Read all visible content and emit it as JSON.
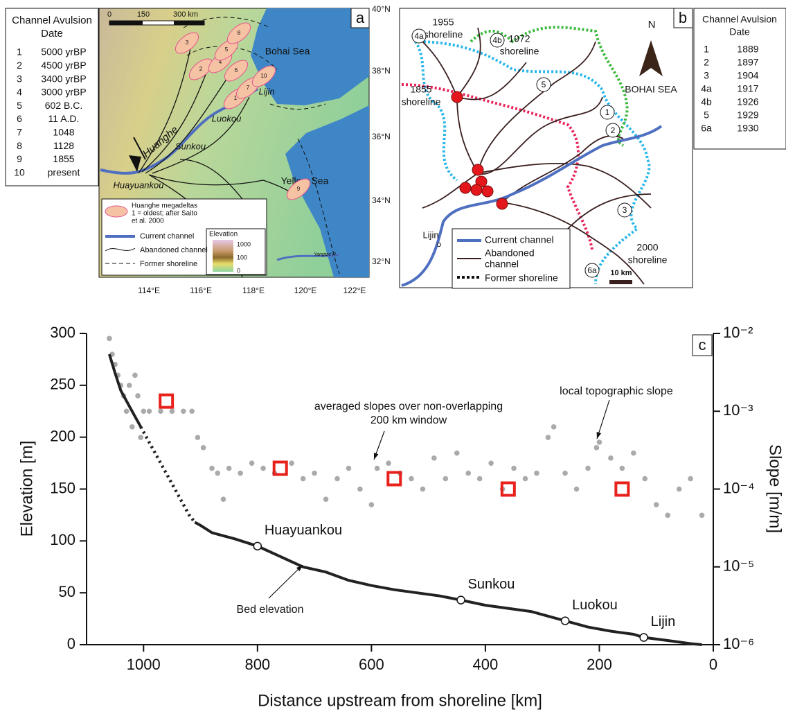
{
  "panel_a": {
    "label": "a",
    "table": {
      "header": [
        "Channel Avulsion",
        "Date"
      ],
      "rows": [
        [
          "1",
          "5000 yrBP"
        ],
        [
          "2",
          "4500 yrBP"
        ],
        [
          "3",
          "3400 yrBP"
        ],
        [
          "4",
          "3000 yrBP"
        ],
        [
          "5",
          "602 B.C."
        ],
        [
          "6",
          "11 A.D."
        ],
        [
          "7",
          "1048"
        ],
        [
          "8",
          "1128"
        ],
        [
          "9",
          "1855"
        ],
        [
          "10",
          "present"
        ]
      ]
    },
    "scale_labels": [
      "0",
      "150",
      "300 km"
    ],
    "lat_labels": [
      "40°N",
      "38°N",
      "36°N",
      "34°N",
      "32°N"
    ],
    "lon_labels": [
      "114°E",
      "116°E",
      "118°E",
      "120°E",
      "122°E"
    ],
    "places": [
      "Bohai Sea",
      "Lijin",
      "Luokou",
      "Sunkou",
      "Huayuankou",
      "Yellow Sea"
    ],
    "river": "Huanghe",
    "small_river": "Yangtze R.",
    "deltas": [
      "1",
      "2",
      "3",
      "4",
      "5",
      "6",
      "7",
      "8",
      "9",
      "10"
    ],
    "legend": {
      "deltas": [
        "Huanghe megadeltas",
        "1 = oldest; after Saito",
        "et al. 2000"
      ],
      "current": "Current channel",
      "abandoned": "Abandoned channel",
      "shoreline": "Former shoreline"
    },
    "elevation": {
      "title": "Elevation",
      "ticks": [
        "1000",
        "100",
        "0"
      ]
    }
  },
  "panel_b": {
    "label": "b",
    "table": {
      "header": [
        "Channel Avulsion",
        "Date"
      ],
      "rows": [
        [
          "1",
          "1889"
        ],
        [
          "2",
          "1897"
        ],
        [
          "3",
          "1904"
        ],
        [
          "4a",
          "1917"
        ],
        [
          "4b",
          "1926"
        ],
        [
          "5",
          "1929"
        ],
        [
          "6a",
          "1930"
        ]
      ]
    },
    "shorelines": [
      [
        "1955",
        "shoreline"
      ],
      [
        "1972",
        "shoreline"
      ],
      [
        "1855",
        "shoreline"
      ],
      [
        "2000",
        "shoreline"
      ]
    ],
    "circled": [
      "4a",
      "4b",
      "5",
      "1",
      "2",
      "3",
      "6a"
    ],
    "north": "N",
    "sea": "BOHAI SEA",
    "town": "Lijin",
    "legend": {
      "current": "Current channel",
      "abandoned": [
        "Abandoned",
        "channel"
      ],
      "shoreline": "Former shoreline"
    },
    "scale": "10 km"
  },
  "chart_data": {
    "type": "line",
    "label": "c",
    "xlabel": "Distance upstream from shoreline [km]",
    "ylabel": "Elevation [m]",
    "y2label": "Slope [m/m]",
    "xlim": [
      1100,
      0
    ],
    "xticks": [
      1000,
      800,
      600,
      400,
      200,
      0
    ],
    "ylim": [
      0,
      300
    ],
    "yticks": [
      0,
      50,
      100,
      150,
      200,
      250,
      300
    ],
    "y2lim": [
      1e-06,
      0.01
    ],
    "y2log": true,
    "y2ticks": [
      {
        "value": 1e-06,
        "label": "10⁻⁶"
      },
      {
        "value": 1e-05,
        "label": "10⁻⁵"
      },
      {
        "value": 0.0001,
        "label": "10⁻⁴"
      },
      {
        "value": 0.001,
        "label": "10⁻³"
      },
      {
        "value": 0.01,
        "label": "10⁻²"
      }
    ],
    "x": [
      1060,
      1050,
      1040,
      1020,
      1005,
      1000,
      960,
      920,
      910,
      900,
      880,
      860,
      840,
      800,
      760,
      720,
      680,
      640,
      600,
      560,
      520,
      480,
      443,
      400,
      360,
      320,
      260,
      220,
      180,
      140,
      122,
      80,
      40,
      20
    ],
    "series": [
      {
        "marker": "dot",
        "axis": "y2",
        "color": "#aaaaaa",
        "x": [
          1060,
          1055,
          1050,
          1045,
          1040,
          1035,
          1030,
          1025,
          1020,
          1015,
          1010,
          1005,
          1000,
          990,
          970,
          950,
          930,
          915,
          905,
          895,
          880,
          870,
          860,
          850,
          830,
          810,
          790,
          770,
          740,
          720,
          700,
          680,
          660,
          640,
          620,
          600,
          590,
          570,
          550,
          530,
          510,
          490,
          470,
          450,
          430,
          410,
          390,
          370,
          350,
          330,
          310,
          290,
          280,
          260,
          240,
          220,
          205,
          200,
          180,
          160,
          140,
          120,
          100,
          80,
          60,
          40,
          20
        ],
        "values": [
          0.0086,
          0.0054,
          0.004,
          0.0029,
          0.00215,
          0.00158,
          0.001,
          0.00215,
          0.00063,
          0.0029,
          0.00158,
          0.00046,
          0.001,
          0.001,
          0.001,
          0.001,
          0.001,
          0.001,
          0.00046,
          0.00034,
          0.000185,
          0.00016,
          7.4e-05,
          0.000185,
          0.00016,
          0.000215,
          0.000185,
          0.00016,
          0.000215,
          0.000136,
          0.00016,
          7.4e-05,
          0.000136,
          0.000185,
          0.0001,
          6.3e-05,
          0.000185,
          0.000215,
          0.00016,
          0.000136,
          0.0001,
          0.00025,
          0.000136,
          0.00029,
          0.00016,
          0.000136,
          0.000215,
          0.0001,
          0.000185,
          0.000136,
          0.00016,
          0.00046,
          0.00063,
          0.00016,
          0.0001,
          0.000185,
          0.00034,
          0.0004,
          0.00025,
          0.000185,
          0.00029,
          0.000136,
          6.3e-05,
          4.6e-05,
          0.0001,
          0.000136,
          4.6e-05
        ]
      },
      {
        "marker": "line",
        "color": "#222222",
        "values": [
          280,
          262,
          245,
          225,
          210,
          null,
          null,
          null,
          118,
          115,
          108,
          105,
          102,
          95,
          85,
          75,
          70,
          62,
          57,
          53,
          50,
          47,
          43,
          38,
          35,
          32,
          23,
          17,
          13,
          10,
          7,
          4,
          1,
          0
        ]
      },
      {
        "marker": "dotted",
        "color": "#222222",
        "values": [
          null,
          null,
          null,
          null,
          210,
          205,
          165,
          125,
          118,
          null,
          null,
          null,
          null,
          null,
          null,
          null,
          null,
          null,
          null,
          null,
          null,
          null,
          null,
          null,
          null,
          null,
          null,
          null,
          null,
          null,
          null,
          null,
          null,
          null
        ]
      },
      {
        "marker": "square",
        "axis": "y2",
        "color": "#e8211d",
        "x": [
          960,
          760,
          560,
          360,
          160
        ],
        "values": [
          0.00135,
          0.000185,
          0.000136,
          0.0001,
          0.0001
        ]
      }
    ],
    "stations": {
      "names": [
        "Huayuankou",
        "Sunkou",
        "Luokou",
        "Lijin"
      ],
      "x": [
        800,
        443,
        260,
        122
      ],
      "values": [
        95,
        43,
        23,
        7
      ]
    },
    "annotations": [
      [
        "averaged slopes over non-overlapping",
        "200 km window"
      ],
      [
        "local topographic slope"
      ],
      [
        "Bed elevation"
      ]
    ]
  }
}
